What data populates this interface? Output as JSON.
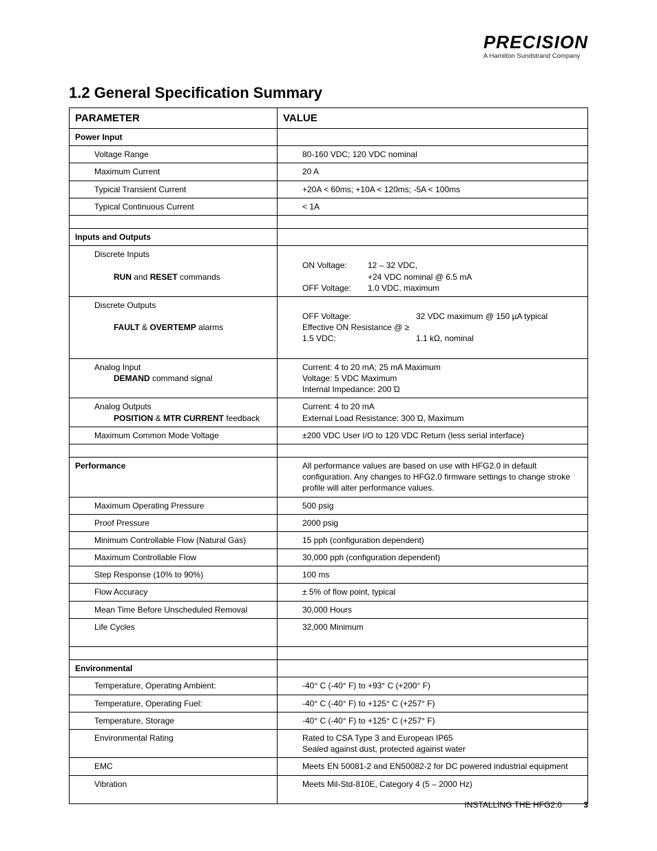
{
  "logo": {
    "brand": "PRECISION",
    "tagline": "A Hamilton Sundstrand Company"
  },
  "heading": "1.2  General Specification Summary",
  "table": {
    "headers": {
      "param": "PARAMETER",
      "value": "VALUE"
    },
    "power_input": {
      "label": "Power Input",
      "voltage_range": {
        "label": "Voltage Range",
        "value": "80-160 VDC;  120 VDC nominal"
      },
      "max_current": {
        "label": "Maximum Current",
        "value": "20 A"
      },
      "typ_transient": {
        "label": "Typical Transient Current",
        "value": "+20A < 60ms;  +10A < 120ms;  -5A < 100ms"
      },
      "typ_continuous": {
        "label": "Typical Continuous Current",
        "value": "< 1A"
      }
    },
    "io": {
      "label": "Inputs and Outputs",
      "discrete_inputs": {
        "label": "Discrete Inputs",
        "sub_label_pre": "RUN",
        "sub_label_mid": " and ",
        "sub_label_post": "RESET",
        "sub_label_tail": " commands",
        "on_voltage_label": "ON Voltage:",
        "on_voltage_val1": "12 – 32 VDC,",
        "on_voltage_val2": "+24 VDC nominal @ 6.5 mA",
        "off_voltage_label": "OFF Voltage:",
        "off_voltage_val": "1.0 VDC, maximum"
      },
      "discrete_outputs": {
        "label": "Discrete Outputs",
        "sub_label_a": "FAULT",
        "sub_label_amp": " & ",
        "sub_label_b": " OVERTEMP",
        "sub_label_tail": " alarms",
        "off_v_label": "OFF Voltage:",
        "off_v_val": "32 VDC maximum @ 150 µA typical",
        "eff_on_label": "Effective ON Resistance @ ≥ 1.5 VDC:",
        "eff_on_val": "1.1 kΩ, nominal"
      },
      "analog_input": {
        "label": "Analog Input",
        "sub_bold": "DEMAND",
        "sub_tail": " command signal",
        "l1": "Current: 4 to 20 mA; 25 mA Maximum",
        "l2": "Voltage: 5 VDC Maximum",
        "l3": "Internal Impedance:  200 Ώ"
      },
      "analog_outputs": {
        "label": "Analog Outputs",
        "sub_a": "POSITION",
        "sub_amp": " & ",
        "sub_b": "MTR  CURRENT",
        "sub_tail": " feedback",
        "l1": "Current: 4 to 20 mA",
        "l2": "External Load Resistance:  300 Ώ, Maximum"
      },
      "max_common_mode": {
        "label": "Maximum Common Mode Voltage",
        "value": "±200 VDC User I/O to 120 VDC Return (less serial interface)"
      }
    },
    "performance": {
      "label": "Performance",
      "note": "All performance values are based on use with HFG2.0 in default configuration. Any changes to HFG2.0 firmware settings to change stroke profile will alter performance values.",
      "rows": {
        "max_op_pressure": {
          "label": "Maximum Operating Pressure",
          "value": "500 psig"
        },
        "proof_pressure": {
          "label": "Proof Pressure",
          "value": "2000 psig"
        },
        "min_flow": {
          "label": "Minimum Controllable Flow (Natural Gas)",
          "value": "15 pph (configuration dependent)"
        },
        "max_flow": {
          "label": "Maximum Controllable Flow",
          "value": "30,000 pph (configuration dependent)"
        },
        "step_response": {
          "label": "Step Response (10% to 90%)",
          "value": "100 ms"
        },
        "flow_accuracy": {
          "label": "Flow Accuracy",
          "value": "± 5% of flow point, typical"
        },
        "mtbur": {
          "label": "Mean Time Before Unscheduled Removal",
          "value": "30,000 Hours"
        },
        "life_cycles": {
          "label": "Life Cycles",
          "value": "32,000 Minimum"
        }
      }
    },
    "environmental": {
      "label": "Environmental",
      "temp_ambient": {
        "label": "Temperature, Operating Ambient:",
        "value": "-40° C (-40° F) to +93° C (+200° F)"
      },
      "temp_fuel": {
        "label": "Temperature, Operating Fuel:",
        "value": "-40° C (-40° F) to +125° C (+257° F)"
      },
      "temp_storage": {
        "label": "Temperature, Storage",
        "value": "-40° C (-40° F) to +125° C (+257° F)"
      },
      "env_rating": {
        "label": "Environmental Rating",
        "l1": "Rated to CSA Type 3 and European IP65",
        "l2": "Sealed against dust, protected against water"
      },
      "emc": {
        "label": "EMC",
        "value": "Meets EN 50081-2 and EN50082-2 for DC powered industrial equipment"
      },
      "vibration": {
        "label": "Vibration",
        "value": "Meets Mil-Std-810E, Category 4 (5 – 2000 Hz)"
      }
    }
  },
  "footer": {
    "section": "INSTALLING THE HFG2.0",
    "page": "3"
  }
}
